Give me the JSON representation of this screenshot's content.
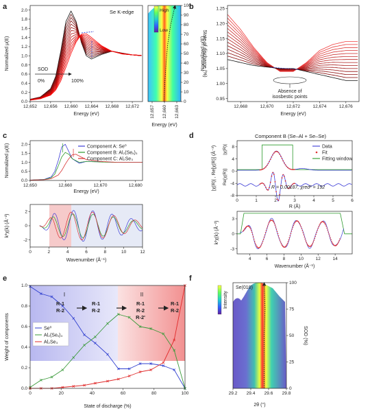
{
  "panels": {
    "a": {
      "label": "a",
      "title": "Se K-edge",
      "sod_label": "SOD",
      "sod_start": "0%",
      "sod_end": "100%",
      "map_axis_label": "State of discharge (%)",
      "colorbar_high": "High",
      "colorbar_low": "Low"
    },
    "b": {
      "label": "b",
      "annotation": "Absence of isosbestic points"
    },
    "c": {
      "label": "c"
    },
    "d": {
      "label": "d",
      "title": "Component B (Se–Al + Se–Se)",
      "fit_stats": "R = 0.00187, χred² = 192"
    },
    "e": {
      "label": "e",
      "regions": [
        {
          "name": "I",
          "mechanisms": [
            "R-1",
            "R-2"
          ]
        },
        {
          "name": "",
          "mechanisms": [
            "R-1",
            "R-2"
          ]
        },
        {
          "name": "II",
          "mechanisms": [
            "R-1",
            "R-2",
            "R-2'"
          ]
        },
        {
          "name": "",
          "mechanisms": [
            "R-1",
            "R-2"
          ]
        }
      ]
    },
    "f": {
      "label": "f",
      "title": "Se(010)",
      "colorbar_label": "Intensity"
    }
  },
  "chart_data": [
    {
      "id": "a-spectra",
      "type": "line",
      "xlabel": "Energy (eV)",
      "ylabel": "Normalized μ(E)",
      "xlim": [
        12652,
        12674
      ],
      "ylim": [
        0,
        2.1
      ],
      "xticks": [
        12652,
        12656,
        12660,
        12664,
        12668,
        12672
      ],
      "yticks": [
        0,
        0.2,
        0.4,
        0.6,
        0.8,
        1.0,
        1.2,
        1.4,
        1.6,
        1.8,
        2.0
      ],
      "n_curves": 14,
      "start_spectrum": {
        "x": [
          12652,
          12654,
          12656,
          12657,
          12658,
          12659,
          12660,
          12661,
          12662,
          12663,
          12664,
          12666,
          12668,
          12670,
          12672,
          12674
        ],
        "y": [
          0.05,
          0.1,
          0.28,
          0.55,
          1.1,
          1.75,
          1.98,
          1.75,
          1.3,
          1.0,
          0.93,
          1.03,
          1.1,
          1.06,
          1.02,
          1.0
        ]
      },
      "end_spectrum": {
        "x": [
          12652,
          12654,
          12656,
          12657,
          12658,
          12659,
          12660,
          12661,
          12662,
          12663,
          12664,
          12666,
          12668,
          12670,
          12672,
          12674
        ],
        "y": [
          0.03,
          0.06,
          0.14,
          0.25,
          0.45,
          0.75,
          1.05,
          1.3,
          1.47,
          1.48,
          1.4,
          1.22,
          1.1,
          1.04,
          1.02,
          1.01
        ]
      }
    },
    {
      "id": "a-map",
      "type": "heatmap",
      "xlabel": "Energy (eV)",
      "ylabel": "State of discharge (%)",
      "xlim": [
        12656,
        12664
      ],
      "ylim": [
        0,
        100
      ],
      "xticks": [
        "12,657",
        "12,660",
        "12,663"
      ],
      "yticks": [
        0,
        10,
        20,
        30,
        40,
        50,
        60,
        70,
        80,
        90,
        100
      ],
      "peak_path": {
        "sod": [
          0,
          20,
          40,
          60,
          80,
          100
        ],
        "energy": [
          12659.9,
          12660.1,
          12660.4,
          12660.8,
          12661.5,
          12662.6
        ]
      }
    },
    {
      "id": "b",
      "type": "line",
      "xlabel": "Energy (eV)",
      "ylabel": "Normalized μ(E)",
      "xlim": [
        12667,
        12677
      ],
      "ylim": [
        0.94,
        1.26
      ],
      "xticks": [
        12668,
        12670,
        12672,
        12674,
        12676
      ],
      "yticks": [
        0.95,
        1.0,
        1.05,
        1.1,
        1.15,
        1.2,
        1.25
      ],
      "n_curves": 14,
      "curve_start": {
        "x": [
          12667,
          12668,
          12669,
          12670,
          12671,
          12672,
          12673,
          12674,
          12675,
          12676,
          12677
        ],
        "y": [
          1.23,
          1.18,
          1.12,
          1.07,
          1.04,
          1.04,
          1.07,
          1.11,
          1.13,
          1.14,
          1.14
        ]
      },
      "curve_end": {
        "x": [
          12667,
          12668,
          12669,
          12670,
          12671,
          12672,
          12673,
          12674,
          12675,
          12676,
          12677
        ],
        "y": [
          1.08,
          1.07,
          1.06,
          1.055,
          1.05,
          1.05,
          1.04,
          1.03,
          1.02,
          1.01,
          1.01
        ]
      }
    },
    {
      "id": "c-xanes",
      "type": "line",
      "xlabel": "Energy (eV)",
      "ylabel": "Normalized μ(E)",
      "xlim": [
        12650,
        12682
      ],
      "ylim": [
        0,
        2.2
      ],
      "xticks": [
        12650,
        12660,
        12670,
        12680
      ],
      "yticks": [
        0,
        0.5,
        1.0,
        1.5,
        2.0
      ],
      "legend": "top-right",
      "series": [
        {
          "name": "Component A: Se⁰",
          "color": "#3b3bd6",
          "x": [
            12650,
            12654,
            12656,
            12657,
            12658,
            12659,
            12660,
            12661,
            12662,
            12664,
            12666,
            12670,
            12675,
            12682
          ],
          "y": [
            0.02,
            0.06,
            0.2,
            0.5,
            1.1,
            1.85,
            2.0,
            1.6,
            1.2,
            0.95,
            1.05,
            1.03,
            1.0,
            1.0
          ]
        },
        {
          "name": "Component B: Al₂(Seₓ)₃",
          "color": "#2a9a2a",
          "x": [
            12650,
            12654,
            12656,
            12657,
            12658,
            12659,
            12660,
            12661,
            12662,
            12664,
            12666,
            12670,
            12675,
            12682
          ],
          "y": [
            0.02,
            0.05,
            0.15,
            0.35,
            0.8,
            1.3,
            1.55,
            1.45,
            1.2,
            1.0,
            1.05,
            1.02,
            1.0,
            1.0
          ]
        },
        {
          "name": "Component C: Al₂Se₃",
          "color": "#d83030",
          "x": [
            12650,
            12654,
            12656,
            12658,
            12659,
            12660,
            12661,
            12662,
            12663,
            12664,
            12666,
            12670,
            12675,
            12682
          ],
          "y": [
            0.02,
            0.04,
            0.1,
            0.3,
            0.55,
            0.9,
            1.2,
            1.42,
            1.45,
            1.35,
            1.15,
            1.05,
            1.0,
            1.0
          ]
        }
      ]
    },
    {
      "id": "c-exafs",
      "type": "line",
      "xlabel": "Wavenumber (Å⁻¹)",
      "ylabel": "k²χ(k) (Å⁻²)",
      "xlim": [
        0,
        12
      ],
      "ylim": [
        -3,
        3
      ],
      "xticks": [
        0,
        2,
        4,
        6,
        8,
        10,
        12
      ],
      "yticks": [
        -2,
        0,
        2
      ]
    },
    {
      "id": "d-rspace",
      "type": "line",
      "xlabel": "R (Å)",
      "ylabel": "|χ(R)| , Re[χ(R)] (Å⁻³)",
      "xlim": [
        0,
        6
      ],
      "ylim": [
        -8,
        10
      ],
      "xticks": [
        0,
        1,
        2,
        3,
        4,
        5,
        6
      ],
      "yticks": [
        -8,
        -4,
        0,
        4,
        8
      ],
      "fitting_window": [
        1.3,
        2.9
      ],
      "legend": "top-right",
      "series": [
        {
          "name": "Data",
          "color": "#3b3bd6"
        },
        {
          "name": "Fit",
          "color": "#e03030"
        },
        {
          "name": "Fitting window",
          "color": "#2a9a2a"
        }
      ]
    },
    {
      "id": "d-kspace",
      "type": "line",
      "xlabel": "Wavenumber (Å⁻¹)",
      "ylabel": "k²χ(k) (Å⁻²)",
      "xlim": [
        2.5,
        16
      ],
      "ylim": [
        -4,
        4.5
      ],
      "xticks": [
        4,
        6,
        8,
        10,
        12,
        14
      ],
      "yticks": [
        -3,
        0,
        3
      ],
      "fitting_window": [
        3.3,
        14.6
      ]
    },
    {
      "id": "e",
      "type": "line",
      "xlabel": "State of discharge (%)",
      "ylabel": "Weight of components",
      "xlim": [
        0,
        100
      ],
      "ylim": [
        0,
        1.0
      ],
      "xticks": [
        0,
        20,
        40,
        60,
        80,
        100
      ],
      "yticks": [
        0,
        0.2,
        0.4,
        0.6,
        0.8,
        1.0
      ],
      "legend": "left",
      "series": [
        {
          "name": "Se⁰",
          "color": "#2f3fcf",
          "x": [
            0,
            7,
            14,
            21,
            28,
            35,
            42,
            50,
            57,
            64,
            71,
            78,
            86,
            93,
            100
          ],
          "y": [
            0.99,
            0.92,
            0.89,
            0.8,
            0.68,
            0.52,
            0.44,
            0.33,
            0.19,
            0.19,
            0.24,
            0.24,
            0.22,
            0.18,
            0.0
          ]
        },
        {
          "name": "Al₂(Seₓ)₃",
          "color": "#3a9a3a",
          "x": [
            0,
            7,
            14,
            21,
            28,
            35,
            42,
            50,
            57,
            64,
            71,
            78,
            86,
            93,
            100
          ],
          "y": [
            0.01,
            0.08,
            0.11,
            0.18,
            0.3,
            0.42,
            0.5,
            0.63,
            0.72,
            0.69,
            0.6,
            0.58,
            0.53,
            0.37,
            0.0
          ]
        },
        {
          "name": "Al₂Se₃",
          "color": "#e02a2a",
          "x": [
            0,
            7,
            14,
            21,
            28,
            35,
            42,
            50,
            57,
            64,
            71,
            78,
            86,
            93,
            100
          ],
          "y": [
            0.0,
            0.0,
            0.0,
            0.01,
            0.02,
            0.03,
            0.05,
            0.07,
            0.09,
            0.12,
            0.16,
            0.18,
            0.25,
            0.47,
            1.0
          ]
        }
      ]
    },
    {
      "id": "f",
      "type": "heatmap",
      "xlabel": "2θ (°)",
      "ylabel": "SOD (%)",
      "xlim": [
        29.2,
        29.8
      ],
      "ylim": [
        0,
        100
      ],
      "xticks": [
        29.2,
        29.4,
        29.6,
        29.8
      ],
      "yticks": [
        0,
        25,
        50,
        75,
        100
      ],
      "peak_path": {
        "sod": [
          0,
          25,
          50,
          75,
          100
        ],
        "two_theta": [
          29.55,
          29.55,
          29.55,
          29.56,
          29.55
        ]
      }
    }
  ]
}
